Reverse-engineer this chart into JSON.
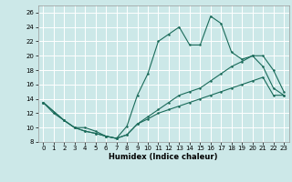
{
  "xlabel": "Humidex (Indice chaleur)",
  "bg_color": "#cce8e8",
  "grid_color": "#ffffff",
  "line_color": "#1a6b5a",
  "xlim": [
    -0.5,
    23.5
  ],
  "ylim": [
    8,
    27
  ],
  "xticks": [
    0,
    1,
    2,
    3,
    4,
    5,
    6,
    7,
    8,
    9,
    10,
    11,
    12,
    13,
    14,
    15,
    16,
    17,
    18,
    19,
    20,
    21,
    22,
    23
  ],
  "yticks": [
    8,
    10,
    12,
    14,
    16,
    18,
    20,
    22,
    24,
    26
  ],
  "line1_x": [
    0,
    1,
    2,
    3,
    4,
    5,
    6,
    7,
    8,
    9,
    10,
    11,
    12,
    13,
    14,
    15,
    16,
    17,
    18,
    19,
    20,
    21,
    22,
    23
  ],
  "line1_y": [
    13.5,
    12.0,
    11.0,
    10.0,
    10.0,
    9.5,
    8.8,
    8.5,
    10.2,
    14.5,
    17.5,
    22.0,
    23.0,
    24.0,
    21.5,
    21.5,
    25.5,
    24.5,
    20.5,
    19.5,
    20.0,
    18.5,
    15.5,
    14.5
  ],
  "line2_x": [
    0,
    2,
    3,
    4,
    5,
    6,
    7,
    8,
    9,
    10,
    11,
    12,
    13,
    14,
    15,
    16,
    17,
    18,
    19,
    20,
    21,
    22,
    23
  ],
  "line2_y": [
    13.5,
    11.0,
    10.0,
    9.5,
    9.2,
    8.8,
    8.5,
    9.0,
    10.5,
    11.2,
    12.0,
    12.5,
    13.0,
    13.5,
    14.0,
    14.5,
    15.0,
    15.5,
    16.0,
    16.5,
    17.0,
    14.5,
    14.5
  ],
  "line3_x": [
    0,
    2,
    3,
    4,
    5,
    6,
    7,
    8,
    9,
    10,
    11,
    12,
    13,
    14,
    15,
    16,
    17,
    18,
    19,
    20,
    21,
    22,
    23
  ],
  "line3_y": [
    13.5,
    11.0,
    10.0,
    9.5,
    9.2,
    8.8,
    8.5,
    9.0,
    10.5,
    11.5,
    12.5,
    13.5,
    14.5,
    15.0,
    15.5,
    16.5,
    17.5,
    18.5,
    19.2,
    20.0,
    20.0,
    18.0,
    15.0
  ]
}
